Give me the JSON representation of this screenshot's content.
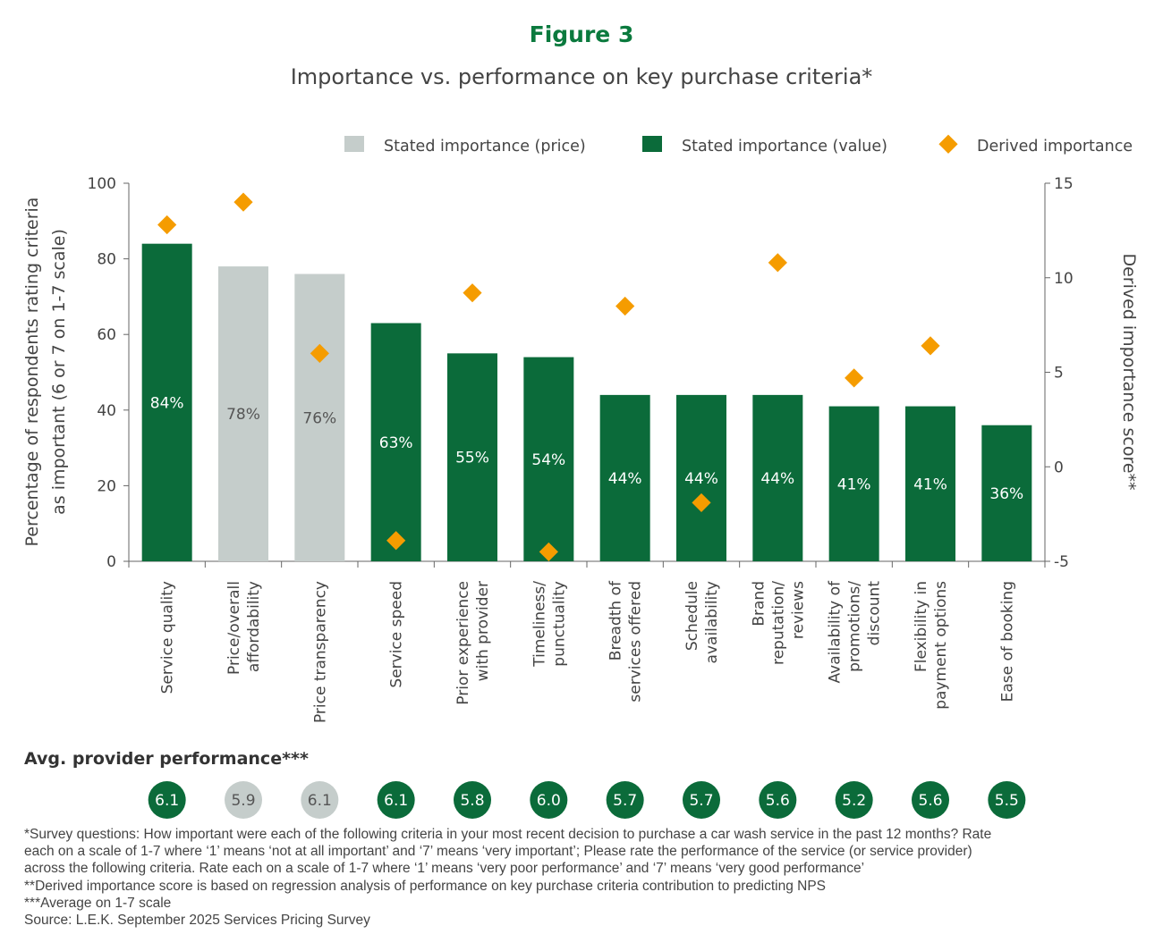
{
  "header": {
    "title": "Figure 3",
    "subtitle": "Importance vs. performance on key purchase criteria*"
  },
  "colors": {
    "price": "#c5cdcb",
    "value": "#0b6b3a",
    "derived": "#f59c00",
    "title": "#0b7a3e"
  },
  "chart_data": {
    "type": "bar",
    "legend_position": "top-right",
    "legend": [
      "Stated importance (price)",
      "Stated importance (value)",
      "Derived importance"
    ],
    "ylabel": "Percentage of respondents rating criteria as important (6 or 7 on 1-7 scale)",
    "y2label": "Derived importance score**",
    "ylim": [
      0,
      100
    ],
    "y2lim": [
      -5,
      15
    ],
    "yticks": [
      0,
      20,
      40,
      60,
      80,
      100
    ],
    "y2ticks": [
      -5,
      0,
      5,
      10,
      15
    ],
    "grid": false,
    "categories": [
      [
        "Service quality"
      ],
      [
        "Price/overall",
        "affordability"
      ],
      [
        "Price transparency"
      ],
      [
        "Service speed"
      ],
      [
        "Prior experience",
        "with provider"
      ],
      [
        "Timeliness/",
        "punctuality"
      ],
      [
        "Breadth of",
        "services offered"
      ],
      [
        "Schedule",
        "availability"
      ],
      [
        "Brand",
        "reputation/",
        "reviews"
      ],
      [
        "Availability of",
        "promotions/",
        "discount"
      ],
      [
        "Flexibility in",
        "payment options"
      ],
      [
        "Ease of booking"
      ]
    ],
    "series": [
      {
        "name": "Stated importance (price / value)",
        "type": "bar",
        "values": [
          84,
          78,
          76,
          63,
          55,
          54,
          44,
          44,
          44,
          41,
          41,
          36
        ],
        "labels": [
          "84%",
          "78%",
          "76%",
          "63%",
          "55%",
          "54%",
          "44%",
          "44%",
          "44%",
          "41%",
          "41%",
          "36%"
        ],
        "kind": [
          "value",
          "price",
          "price",
          "value",
          "value",
          "value",
          "value",
          "value",
          "value",
          "value",
          "value",
          "value"
        ]
      },
      {
        "name": "Derived importance",
        "type": "scatter",
        "axis": "right",
        "values": [
          12.8,
          14.0,
          6.0,
          -3.9,
          9.2,
          -4.5,
          8.5,
          -1.9,
          10.8,
          4.7,
          6.4,
          null
        ]
      }
    ],
    "performance": {
      "title": "Avg. provider performance***",
      "values": [
        "6.1",
        "5.9",
        "6.1",
        "6.1",
        "5.8",
        "6.0",
        "5.7",
        "5.7",
        "5.6",
        "5.2",
        "5.6",
        "5.5"
      ]
    }
  },
  "notes": [
    "*Survey questions: How important were each of the following criteria in your most recent decision to purchase a car wash service in the past 12 months? Rate",
    "each on a scale of 1-7 where ‘1’ means ‘not at all important’ and ‘7’ means ‘very important’; Please rate the performance of the service (or service provider)",
    "across the following criteria. Rate each on a scale of 1-7 where ‘1’ means ‘very poor performance’ and ‘7’ means ‘very good performance’",
    "**Derived importance score is based on regression analysis of performance on key purchase criteria contribution to predicting NPS",
    "***Average on 1-7 scale",
    "Source: L.E.K. September 2025 Services Pricing Survey"
  ]
}
